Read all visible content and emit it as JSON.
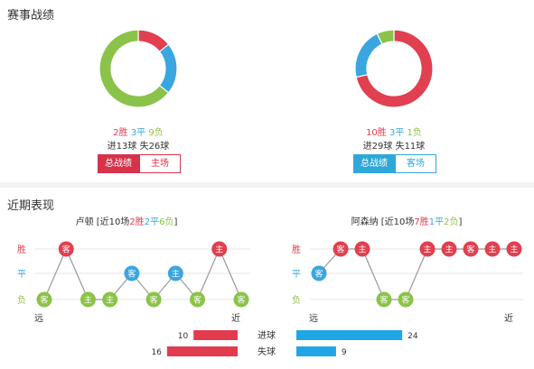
{
  "section1": {
    "title": "赛事战绩",
    "left": {
      "record": {
        "win": "2胜",
        "draw": "3平",
        "loss": "9负"
      },
      "goals": "进13球 失26球",
      "tabs": [
        "总战绩",
        "主场"
      ],
      "donut": {
        "win": 2,
        "draw": 3,
        "loss": 9
      }
    },
    "right": {
      "record": {
        "win": "10胜",
        "draw": "3平",
        "loss": "1负"
      },
      "goals": "进29球 失11球",
      "tabs": [
        "总战绩",
        "客场"
      ],
      "donut": {
        "win": 10,
        "draw": 3,
        "loss": 1
      }
    },
    "colors": {
      "win": "#e0404f",
      "draw": "#3aa6e0",
      "loss": "#8bc34a"
    }
  },
  "section2": {
    "title": "近期表现",
    "left": {
      "team": "卢顿",
      "prefix": " [近10场",
      "win": "2胜",
      "draw": "2平",
      "loss": "6负",
      "suffix": "]",
      "results": [
        "负",
        "胜",
        "负",
        "负",
        "平",
        "负",
        "平",
        "负",
        "胜",
        "负"
      ],
      "venues": [
        "客",
        "客",
        "主",
        "主",
        "客",
        "客",
        "主",
        "客",
        "主",
        "客"
      ]
    },
    "right": {
      "team": "阿森纳",
      "prefix": " [近10场",
      "win": "7胜",
      "draw": "1平",
      "loss": "2负",
      "suffix": "]",
      "results": [
        "平",
        "胜",
        "胜",
        "负",
        "负",
        "胜",
        "胜",
        "胜",
        "胜",
        "胜"
      ],
      "venues": [
        "客",
        "客",
        "主",
        "客",
        "客",
        "主",
        "主",
        "客",
        "主",
        "主"
      ]
    },
    "axis": {
      "win": "胜",
      "draw": "平",
      "loss": "负",
      "far": "远",
      "near": "近"
    },
    "stats": {
      "scored_label": "进球",
      "conceded_label": "失球",
      "left_scored": 10,
      "left_conceded": 16,
      "right_scored": 24,
      "right_conceded": 9
    }
  }
}
